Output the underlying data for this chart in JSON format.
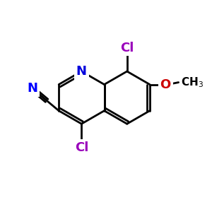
{
  "bg_color": "#ffffff",
  "bond_color": "#000000",
  "bond_width": 2.0,
  "atom_colors": {
    "N_ring": "#0000dd",
    "N_nitrile": "#0000ff",
    "Cl": "#9900bb",
    "O": "#cc0000",
    "C": "#000000"
  },
  "font_size_atom": 13,
  "font_size_methyl": 11,
  "font_size_cn": 13
}
